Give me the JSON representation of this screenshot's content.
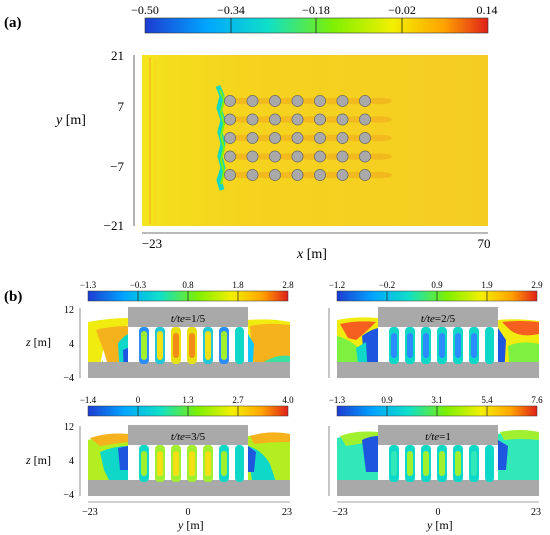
{
  "panel_a": {
    "label": "(a)",
    "colorbar_ticks": [
      "−0.50",
      "−0.34",
      "−0.18",
      "−0.02",
      "0.14"
    ],
    "y_ticks": [
      "21",
      "7",
      "−7",
      "−21"
    ],
    "x_ticks": [
      "−23",
      "70"
    ],
    "xlabel_var": "x",
    "xlabel_unit": " [m]",
    "ylabel_var": "y",
    "ylabel_unit": " [m]"
  },
  "panel_b": {
    "label": "(b)",
    "z_ticks": [
      "12",
      "4",
      "−4"
    ],
    "y_ticks": [
      "−23",
      "0",
      "23"
    ],
    "zlabel_var": "z",
    "zlabel_unit": " [m]",
    "ylabel_var": "y",
    "ylabel_unit": " [m]",
    "subplots": [
      {
        "title_var": "t/te",
        "title_value": "=1/5",
        "colorbar_ticks": [
          "−1.3",
          "−0.3",
          "0.8",
          "1.8",
          "2.8"
        ]
      },
      {
        "title_var": "t/te",
        "title_value": "=2/5",
        "colorbar_ticks": [
          "−1.2",
          "−0.2",
          "0.9",
          "1.9",
          "2.9"
        ]
      },
      {
        "title_var": "t/te",
        "title_value": "=3/5",
        "colorbar_ticks": [
          "−1.4",
          "0",
          "1.3",
          "2.7",
          "4.0"
        ]
      },
      {
        "title_var": "t/te",
        "title_value": "=1",
        "colorbar_ticks": [
          "−1.3",
          "0.9",
          "3.1",
          "5.4",
          "7.6"
        ]
      }
    ]
  },
  "colors": {
    "map": [
      "#1d3bd1",
      "#00a5ff",
      "#10e0c8",
      "#7ef000",
      "#f2f000",
      "#ffa400",
      "#e0201a"
    ],
    "field": "#f5d01e",
    "solid": "#a9a9a9"
  }
}
